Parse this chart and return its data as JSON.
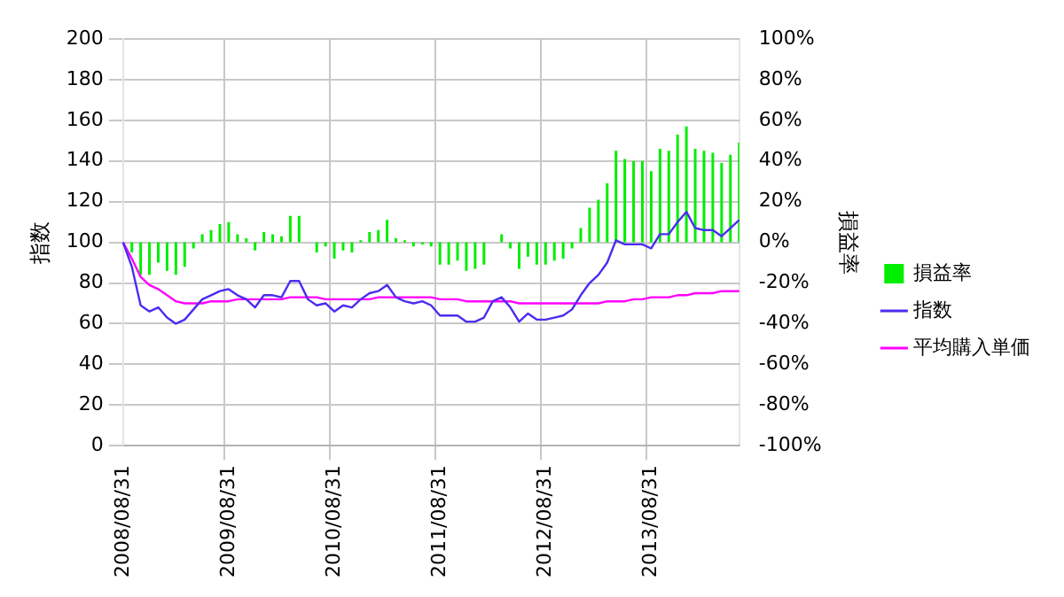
{
  "chart_data": {
    "type": "bar",
    "ylabel": "指数",
    "y2label": "損益率",
    "categories": [
      "2008/08/31",
      null,
      null,
      null,
      null,
      null,
      null,
      null,
      null,
      null,
      null,
      null,
      "2009/08/31",
      null,
      null,
      null,
      null,
      null,
      null,
      null,
      null,
      null,
      null,
      null,
      "2010/08/31",
      null,
      null,
      null,
      null,
      null,
      null,
      null,
      null,
      null,
      null,
      null,
      "2011/08/31",
      null,
      null,
      null,
      null,
      null,
      null,
      null,
      null,
      null,
      null,
      null,
      "2012/08/31",
      null,
      null,
      null,
      null,
      null,
      null,
      null,
      null,
      null,
      null,
      null,
      "2013/08/31",
      null,
      null,
      null,
      null,
      null,
      null,
      null,
      null,
      null,
      null
    ],
    "series": [
      {
        "name": "損益率",
        "axis": "y2",
        "color": "#00ee00",
        "values": [
          0,
          -5,
          -16,
          -16,
          -10,
          -14,
          -16,
          -12,
          -3,
          4,
          6,
          9,
          10,
          4,
          2,
          -4,
          5,
          4,
          3,
          13,
          13,
          0,
          -5,
          -2,
          -8,
          -4,
          -5,
          1,
          5,
          6,
          11,
          2,
          1,
          -2,
          -1,
          -2,
          -11,
          -11,
          -9,
          -14,
          -13,
          -11,
          0,
          4,
          -3,
          -13,
          -7,
          -11,
          -11,
          -9,
          -8,
          -3,
          7,
          17,
          21,
          29,
          45,
          41,
          40,
          40,
          35,
          46,
          45,
          53,
          57,
          46,
          45,
          44,
          39,
          43,
          49
        ]
      },
      {
        "name": "指数",
        "type": "line",
        "color": "#4b2cf0",
        "values": [
          100,
          88,
          69,
          66,
          68,
          63,
          60,
          62,
          67,
          72,
          74,
          76,
          77,
          74,
          72,
          68,
          74,
          74,
          73,
          81,
          81,
          72,
          69,
          70,
          66,
          69,
          68,
          72,
          75,
          76,
          79,
          73,
          71,
          70,
          71,
          69,
          64,
          64,
          64,
          61,
          61,
          63,
          71,
          73,
          68,
          61,
          65,
          62,
          62,
          63,
          64,
          67,
          74,
          80,
          84,
          90,
          101,
          99,
          99,
          99,
          97,
          104,
          104,
          110,
          115,
          107,
          106,
          106,
          103,
          107,
          111
        ]
      },
      {
        "name": "平均購入単価",
        "type": "line",
        "color": "#ff00ff",
        "values": [
          100,
          92,
          83,
          79,
          77,
          74,
          71,
          70,
          70,
          70,
          71,
          71,
          71,
          72,
          72,
          72,
          72,
          72,
          72,
          73,
          73,
          73,
          73,
          72,
          72,
          72,
          72,
          72,
          72,
          73,
          73,
          73,
          73,
          73,
          73,
          73,
          72,
          72,
          72,
          71,
          71,
          71,
          71,
          71,
          71,
          70,
          70,
          70,
          70,
          70,
          70,
          70,
          70,
          70,
          70,
          71,
          71,
          71,
          72,
          72,
          73,
          73,
          73,
          74,
          74,
          75,
          75,
          75,
          76,
          76,
          76
        ]
      }
    ],
    "ylim": [
      0,
      200
    ],
    "yticks": [
      0,
      20,
      40,
      60,
      80,
      100,
      120,
      140,
      160,
      180,
      200
    ],
    "y2lim": [
      -100,
      100
    ],
    "y2ticks": [
      {
        "value": -100,
        "label": "-100%"
      },
      {
        "value": -80,
        "label": "-80%"
      },
      {
        "value": -60,
        "label": "-60%"
      },
      {
        "value": -40,
        "label": "-40%"
      },
      {
        "value": -20,
        "label": "-20%"
      },
      {
        "value": 0,
        "label": "0%"
      },
      {
        "value": 20,
        "label": "20%"
      },
      {
        "value": 40,
        "label": "40%"
      },
      {
        "value": 60,
        "label": "60%"
      },
      {
        "value": 80,
        "label": "80%"
      },
      {
        "value": 100,
        "label": "100%"
      }
    ],
    "grid": true,
    "legend": "right",
    "marker": "none",
    "line_style": "solid"
  }
}
